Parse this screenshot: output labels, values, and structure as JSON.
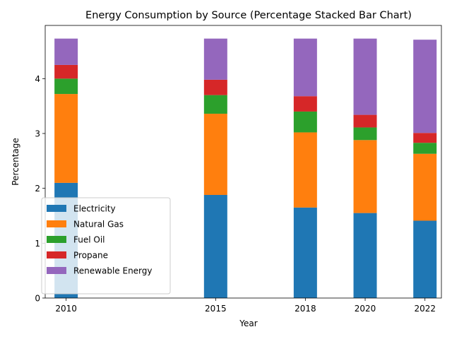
{
  "chart_data": {
    "type": "bar",
    "stacked": true,
    "title": "Energy Consumption by Source (Percentage Stacked Bar Chart)",
    "xlabel": "Year",
    "ylabel": "Percentage",
    "x": [
      2010,
      2015,
      2018,
      2020,
      2022
    ],
    "x_tick_labels": [
      "2010",
      "2015",
      "2018",
      "2020",
      "2022"
    ],
    "xlim": [
      2009.3,
      2022.55
    ],
    "ylim": [
      0,
      4.97
    ],
    "y_ticks": [
      0,
      1,
      2,
      3,
      4
    ],
    "y_tick_labels": [
      "0",
      "1",
      "2",
      "3",
      "4"
    ],
    "grid": false,
    "legend_position": "lower-left",
    "series": [
      {
        "name": "Electricity",
        "color": "#1f77b4",
        "values": [
          2.1,
          1.88,
          1.65,
          1.55,
          1.41
        ]
      },
      {
        "name": "Natural Gas",
        "color": "#ff7f0e",
        "values": [
          1.62,
          1.48,
          1.37,
          1.33,
          1.22
        ]
      },
      {
        "name": "Fuel Oil",
        "color": "#2ca02c",
        "values": [
          0.28,
          0.34,
          0.38,
          0.23,
          0.2
        ]
      },
      {
        "name": "Propane",
        "color": "#d62728",
        "values": [
          0.25,
          0.28,
          0.28,
          0.23,
          0.18
        ]
      },
      {
        "name": "Renewable Energy",
        "color": "#9467bd",
        "values": [
          0.48,
          0.75,
          1.05,
          1.39,
          1.7
        ]
      }
    ]
  }
}
